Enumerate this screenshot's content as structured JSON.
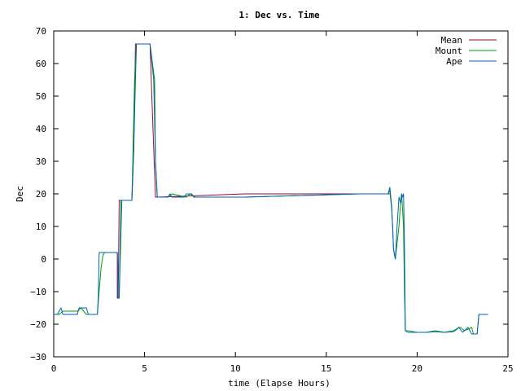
{
  "chart_data": {
    "type": "line",
    "title": "1: Dec vs. Time",
    "xlabel": "time (Elapse Hours)",
    "ylabel": "Dec",
    "xlim": [
      0,
      25
    ],
    "ylim": [
      -30,
      70
    ],
    "xticks": [
      0,
      5,
      10,
      15,
      20,
      25
    ],
    "yticks": [
      -30,
      -20,
      -10,
      0,
      10,
      20,
      30,
      40,
      50,
      60,
      70
    ],
    "grid": false,
    "legend_position": "top-right",
    "colors": {
      "Mean": "#9a0a2a",
      "Mount": "#00a000",
      "Ape": "#0060c0"
    },
    "series": [
      {
        "name": "Mean",
        "x": [
          2.5,
          3.5,
          3.5,
          3.55,
          3.6,
          3.7,
          3.75,
          4.3,
          4.4,
          4.5,
          4.5,
          5.3,
          5.4,
          5.6,
          5.7,
          10.5,
          16.8,
          18.5
        ],
        "y": [
          2,
          2,
          -12,
          -12,
          18,
          18,
          18,
          18,
          33,
          66,
          66,
          66,
          50,
          19,
          19,
          20,
          20,
          20
        ]
      },
      {
        "name": "Mount",
        "x": [
          0,
          0.3,
          0.5,
          1.3,
          1.5,
          1.8,
          2.4,
          2.5,
          2.6,
          2.7,
          2.8,
          3.5,
          3.55,
          3.6,
          3.75,
          4.3,
          4.35,
          4.45,
          4.55,
          5.3,
          5.55,
          5.6,
          5.7,
          6.3,
          6.5,
          7.3,
          7.5,
          7.8,
          10.5,
          16.8,
          18.4,
          18.5,
          18.6,
          18.65,
          18.7,
          18.8,
          19.0,
          19.1,
          19.15,
          19.25,
          19.3,
          19.35,
          19.5,
          20.0,
          20.5,
          21.0,
          21.5,
          22.0,
          22.3,
          22.4,
          22.6,
          23.0,
          23.1,
          23.3,
          23.4,
          23.5,
          23.9
        ],
        "y": [
          -17,
          -17,
          -16,
          -16,
          -15,
          -17,
          -17,
          -10,
          -3,
          1,
          2,
          2,
          -12,
          -12,
          18,
          18,
          30,
          55,
          66,
          66,
          55,
          30,
          19,
          19,
          20,
          19,
          20,
          19,
          19,
          20,
          20,
          21,
          15,
          10,
          3,
          0,
          10,
          18,
          20,
          10,
          -10,
          -22,
          -22,
          -22.5,
          -22.5,
          -22,
          -22.5,
          -22,
          -21,
          -21,
          -22,
          -21,
          -23,
          -23,
          -17,
          -17,
          -17
        ]
      },
      {
        "name": "Ape",
        "x": [
          0,
          0.2,
          0.3,
          0.4,
          0.5,
          1.3,
          1.4,
          1.8,
          1.9,
          2.4,
          2.45,
          2.5,
          2.6,
          3.5,
          3.55,
          3.6,
          3.7,
          4.3,
          4.4,
          4.5,
          4.55,
          5.3,
          5.5,
          5.6,
          5.7,
          6.3,
          6.4,
          6.5,
          7.2,
          7.3,
          7.6,
          7.7,
          10.5,
          16.8,
          18.4,
          18.5,
          18.6,
          18.65,
          18.7,
          18.8,
          18.9,
          19.0,
          19.1,
          19.15,
          19.2,
          19.25,
          19.3,
          19.35,
          19.5,
          20.0,
          20.5,
          21.0,
          21.5,
          22.0,
          22.2,
          22.3,
          22.5,
          22.7,
          22.8,
          23.0,
          23.2,
          23.3,
          23.4,
          23.5,
          23.9
        ],
        "y": [
          -17,
          -17,
          -16,
          -15,
          -17,
          -17,
          -15,
          -15,
          -17,
          -17,
          -12,
          2,
          2,
          2,
          -12,
          -12,
          18,
          18,
          33,
          55,
          66,
          66,
          55,
          30,
          19,
          19,
          20,
          19,
          19,
          20,
          20,
          19,
          19,
          20,
          20,
          22,
          16,
          10,
          3,
          0,
          10,
          19,
          17,
          20,
          19,
          20,
          5,
          -22,
          -22.5,
          -22.5,
          -22.5,
          -22.3,
          -22.5,
          -22.3,
          -21.5,
          -21,
          -22.5,
          -21.5,
          -21,
          -23,
          -23,
          -23,
          -17,
          -17,
          -17
        ]
      }
    ]
  }
}
